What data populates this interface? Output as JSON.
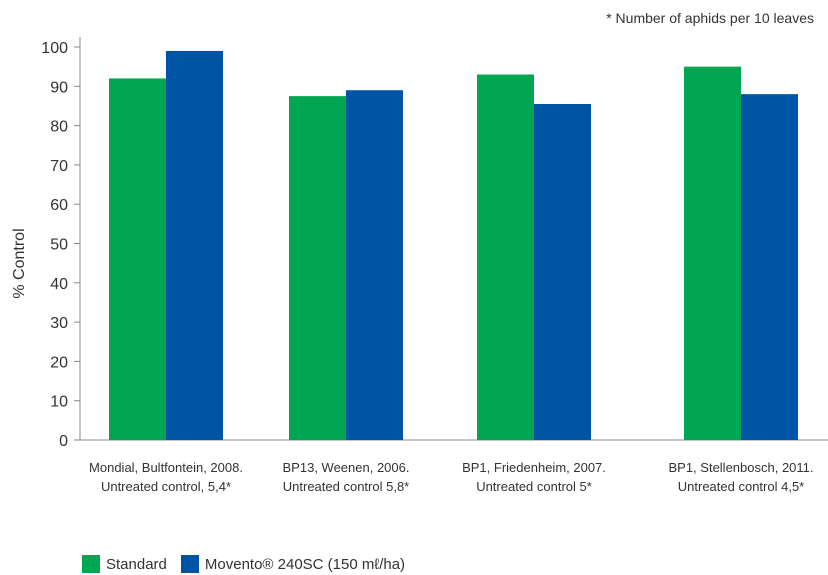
{
  "note": "* Number of aphids per 10 leaves",
  "chart_data": {
    "type": "bar",
    "ylabel": "% Control",
    "ylim": [
      0,
      100
    ],
    "yticks": [
      0,
      10,
      20,
      30,
      40,
      50,
      60,
      70,
      80,
      90,
      100
    ],
    "categories": [
      [
        "Mondial, Bultfontein, 2008.",
        "Untreated control, 5,4*"
      ],
      [
        "BP13, Weenen, 2006.",
        "Untreated control 5,8*"
      ],
      [
        "BP1, Friedenheim, 2007.",
        "Untreated control 5*"
      ],
      [
        "BP1, Stellenbosch, 2011.",
        "Untreated control 4,5*"
      ]
    ],
    "series": [
      {
        "name": "Standard",
        "color": "#00a651",
        "values": [
          92,
          87.5,
          93,
          95
        ]
      },
      {
        "name": "Movento® 240SC (150 mℓ/ha)",
        "color": "#0054a6",
        "values": [
          99,
          89,
          85.5,
          88
        ]
      }
    ],
    "grid": false,
    "legend_position": "bottom-left"
  }
}
